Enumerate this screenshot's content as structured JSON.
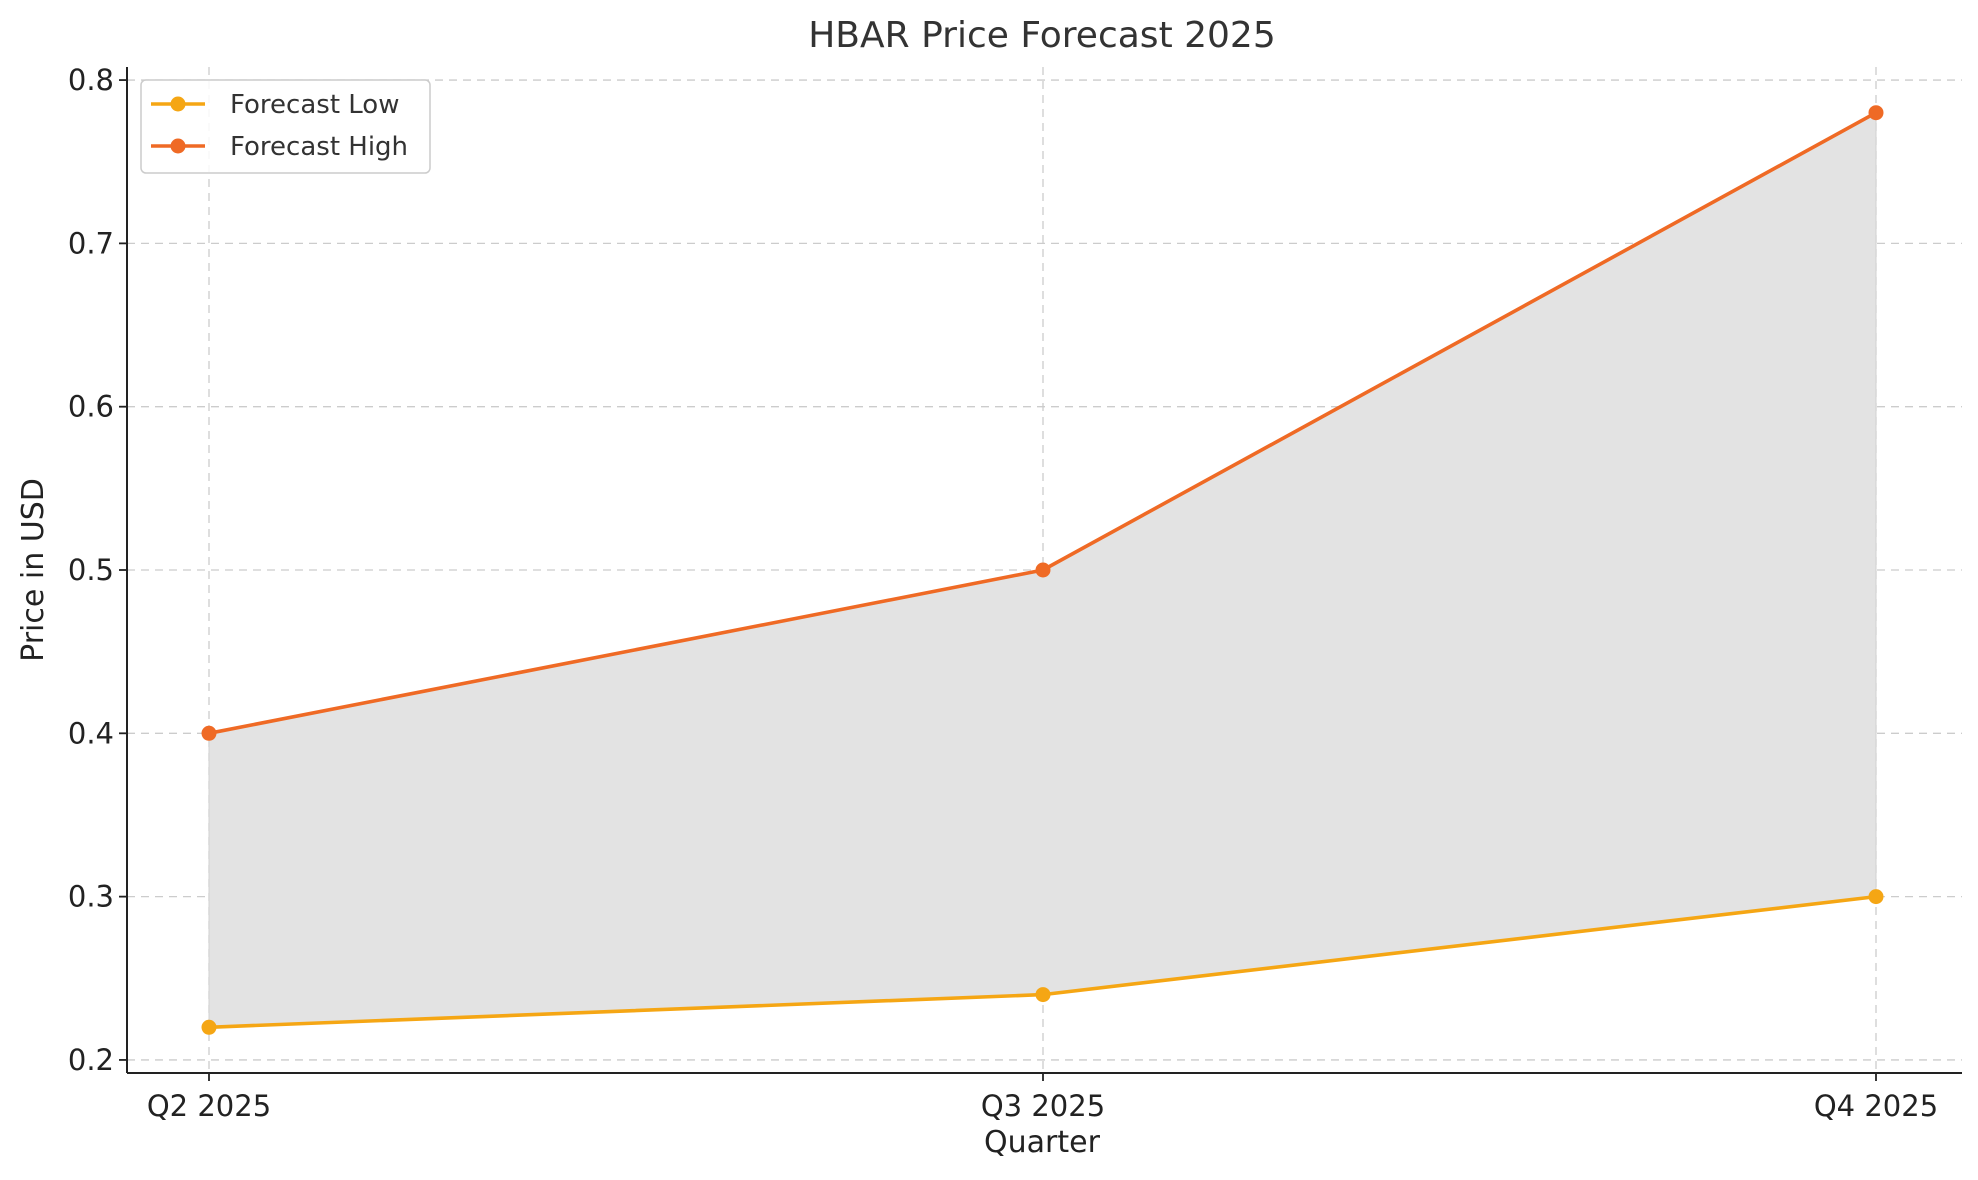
{
  "chart_data": {
    "type": "line",
    "title": "HBAR Price Forecast 2025",
    "xlabel": "Quarter",
    "ylabel": "Price in USD",
    "categories": [
      "Q2 2025",
      "Q3 2025",
      "Q4 2025"
    ],
    "ylim": [
      0.192,
      0.808
    ],
    "yticks": [
      0.2,
      0.3,
      0.4,
      0.5,
      0.6,
      0.7,
      0.8
    ],
    "ytick_labels": [
      "0.2",
      "0.3",
      "0.4",
      "0.5",
      "0.6",
      "0.7",
      "0.8"
    ],
    "grid": true,
    "legend_position": "top-left",
    "fill_between": {
      "lower": "Forecast Low",
      "upper": "Forecast High",
      "color": "#e3e3e3"
    },
    "series": [
      {
        "name": "Forecast Low",
        "values": [
          0.22,
          0.24,
          0.3
        ],
        "color": "#f5a614"
      },
      {
        "name": "Forecast High",
        "values": [
          0.4,
          0.5,
          0.78
        ],
        "color": "#ef6a25"
      }
    ]
  }
}
